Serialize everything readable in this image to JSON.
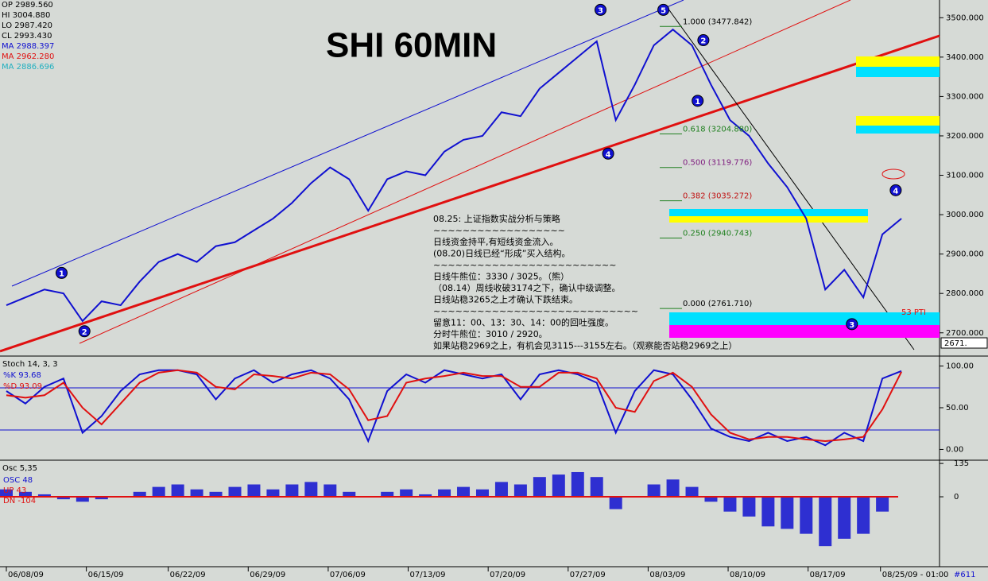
{
  "chart_data": {
    "type": "line",
    "title": "SHI 60MIN",
    "quote": [
      "OP 2989.560",
      "HI 3004.880",
      "LO 2987.420",
      "CL 2993.430",
      "MA 2988.397",
      "MA 2962.280",
      "MA 2886.696"
    ],
    "xticks": [
      {
        "value": 0,
        "label": "06/08/09"
      },
      {
        "value": 4.2,
        "label": "06/15/09"
      },
      {
        "value": 8.5,
        "label": "06/22/09"
      },
      {
        "value": 12.7,
        "label": "06/29/09"
      },
      {
        "value": 16.9,
        "label": "07/06/09"
      },
      {
        "value": 21.1,
        "label": "07/13/09"
      },
      {
        "value": 25.3,
        "label": "07/20/09"
      },
      {
        "value": 29.5,
        "label": "07/27/09"
      },
      {
        "value": 33.7,
        "label": "08/03/09"
      },
      {
        "value": 37.9,
        "label": "08/10/09"
      },
      {
        "value": 42.1,
        "label": "08/17/09"
      },
      {
        "value": 45.9,
        "label": "08/25/09 - 01:00"
      }
    ],
    "xlim": [
      0,
      49
    ],
    "ylim": [
      2643,
      3545
    ],
    "yticks": [
      {
        "value": 3500,
        "label": "3500.000"
      },
      {
        "value": 3400,
        "label": "3400.000"
      },
      {
        "value": 3300,
        "label": "3300.000"
      },
      {
        "value": 3200,
        "label": "3200.000"
      },
      {
        "value": 3100,
        "label": "3100.000"
      },
      {
        "value": 3000,
        "label": "3000.000"
      },
      {
        "value": 2900,
        "label": "2900.000"
      },
      {
        "value": 2800,
        "label": "2800.000"
      },
      {
        "value": 2700,
        "label": "2700.000"
      }
    ],
    "series": [
      {
        "name": "SHI",
        "color": "#1010d0",
        "values": [
          2770,
          2790,
          2810,
          2800,
          2730,
          2780,
          2770,
          2830,
          2880,
          2900,
          2880,
          2920,
          2930,
          2960,
          2990,
          3030,
          3080,
          3120,
          3090,
          3010,
          3090,
          3110,
          3100,
          3160,
          3190,
          3200,
          3260,
          3250,
          3320,
          3360,
          3400,
          3440,
          3240,
          3330,
          3430,
          3470,
          3430,
          3330,
          3240,
          3200,
          3130,
          3070,
          2990,
          2810,
          2860,
          2790,
          2950,
          2990
        ]
      }
    ],
    "fib_levels": [
      {
        "label": "1.000 (3477.842)",
        "value": 3477.842
      },
      {
        "label": "0.618 (3204.880)",
        "value": 3204.88
      },
      {
        "label": "0.500 (3119.776)",
        "value": 3119.776
      },
      {
        "label": "0.382 (3035.272)",
        "value": 3035.272
      },
      {
        "label": "0.250 (2940.743)",
        "value": 2940.743
      },
      {
        "label": "0.000 (2761.710)",
        "value": 2761.71
      }
    ],
    "waves": [
      {
        "label": "1",
        "x": 2.9,
        "y": 2852
      },
      {
        "label": "2",
        "x": 4.1,
        "y": 2704
      },
      {
        "label": "3",
        "x": 31.2,
        "y": 3520
      },
      {
        "label": "4",
        "x": 31.6,
        "y": 3155
      },
      {
        "label": "5",
        "x": 34.5,
        "y": 3520
      },
      {
        "label": "2",
        "x": 36.6,
        "y": 3443
      },
      {
        "label": "1",
        "x": 36.3,
        "y": 3289
      },
      {
        "label": "3",
        "x": 44.4,
        "y": 2722
      },
      {
        "label": "4",
        "x": 46.7,
        "y": 3062
      }
    ],
    "notes": [
      "08.25: 上证指数实战分析与策略",
      "~~~~~~~~~~~~~~~~~~",
      "日线资金持平,有短线资金流入。",
      "(08.20)日线已经“形成”买入结构。",
      "~~~~~~~~~~~~~~~~~~~~~~~~~",
      "日线牛熊位：3330 / 3025。（熊）",
      "（08.14）周线收破3174之下，确认中级调整。",
      "日线站稳3265之上才确认下跌结束。",
      "~~~~~~~~~~~~~~~~~~~~~~~~~~~~",
      "留意11：00、13：30、14：00的回吐强度。",
      "分时牛熊位：3010 / 2920。",
      "如果站稳2969之上，有机会见3115---3155左右。（观察能否站稳2969之上）"
    ],
    "last_price": "2671.",
    "marker": "53 PTI",
    "stoch": {
      "title": "Stoch 14, 3, 3",
      "ylim": [
        -11,
        110
      ],
      "yticks": [
        {
          "value": 100,
          "label": "100.00"
        },
        {
          "value": 50,
          "label": "50.00"
        },
        {
          "value": 0,
          "label": "0.00"
        }
      ],
      "series": [
        {
          "name": "%K 93.68",
          "color": "#1010d0",
          "values": [
            70,
            55,
            75,
            85,
            20,
            40,
            70,
            90,
            95,
            95,
            90,
            60,
            85,
            95,
            80,
            90,
            95,
            85,
            60,
            10,
            70,
            90,
            80,
            95,
            90,
            85,
            90,
            60,
            90,
            95,
            90,
            80,
            20,
            70,
            95,
            90,
            60,
            25,
            15,
            10,
            20,
            10,
            15,
            5,
            20,
            10,
            85,
            94
          ]
        },
        {
          "name": "%D 93.09",
          "color": "#e01010",
          "values": [
            65,
            62,
            65,
            80,
            50,
            30,
            55,
            80,
            92,
            95,
            92,
            75,
            72,
            90,
            88,
            85,
            92,
            90,
            72,
            35,
            40,
            80,
            85,
            88,
            92,
            88,
            88,
            75,
            75,
            92,
            92,
            85,
            50,
            45,
            82,
            92,
            75,
            42,
            20,
            12,
            15,
            15,
            12,
            10,
            12,
            15,
            48,
            93
          ]
        }
      ]
    },
    "osc": {
      "title": "Osc 5,35",
      "labels": [
        "OSC 48",
        "UP 43",
        "DN -104"
      ],
      "ylim": [
        -280,
        145
      ],
      "yticks": [
        135,
        0
      ],
      "color": "#1010d0",
      "values": [
        30,
        20,
        10,
        -10,
        -20,
        -10,
        0,
        20,
        40,
        50,
        30,
        20,
        40,
        50,
        30,
        50,
        60,
        50,
        20,
        0,
        20,
        30,
        10,
        30,
        40,
        30,
        60,
        50,
        80,
        90,
        100,
        80,
        -50,
        0,
        50,
        70,
        40,
        -20,
        -60,
        -80,
        -120,
        -130,
        -150,
        -200,
        -170,
        -150,
        -60,
        0
      ]
    },
    "page_id": "#611"
  }
}
